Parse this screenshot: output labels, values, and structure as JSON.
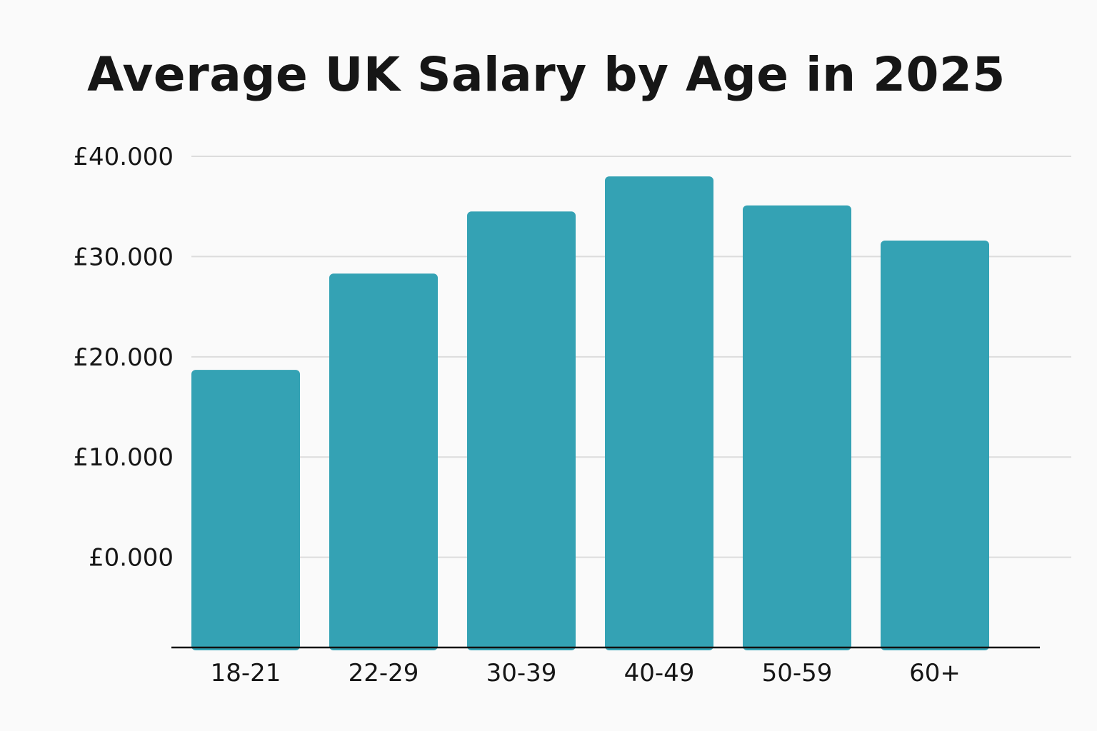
{
  "chart_data": {
    "type": "bar",
    "title": "Average UK Salary by Age in 2025",
    "xlabel": "",
    "ylabel": "",
    "categories": [
      "18-21",
      "22-29",
      "30-39",
      "40-49",
      "50-59",
      "60+"
    ],
    "values": [
      18700,
      28300,
      34500,
      38000,
      35100,
      31600
    ],
    "ylim": [
      -9000,
      40000
    ],
    "yticks": [
      0,
      10000,
      20000,
      30000,
      40000
    ],
    "ytick_labels": [
      "£0.000",
      "£10.000",
      "£20.000",
      "£30.000",
      "£40.000"
    ],
    "grid": true,
    "legend": "none",
    "colors": {
      "bar": "#34a2b4",
      "grid": "#dcdcdc",
      "axis": "#111111",
      "text": "#161616",
      "background": "#fafafa"
    }
  }
}
